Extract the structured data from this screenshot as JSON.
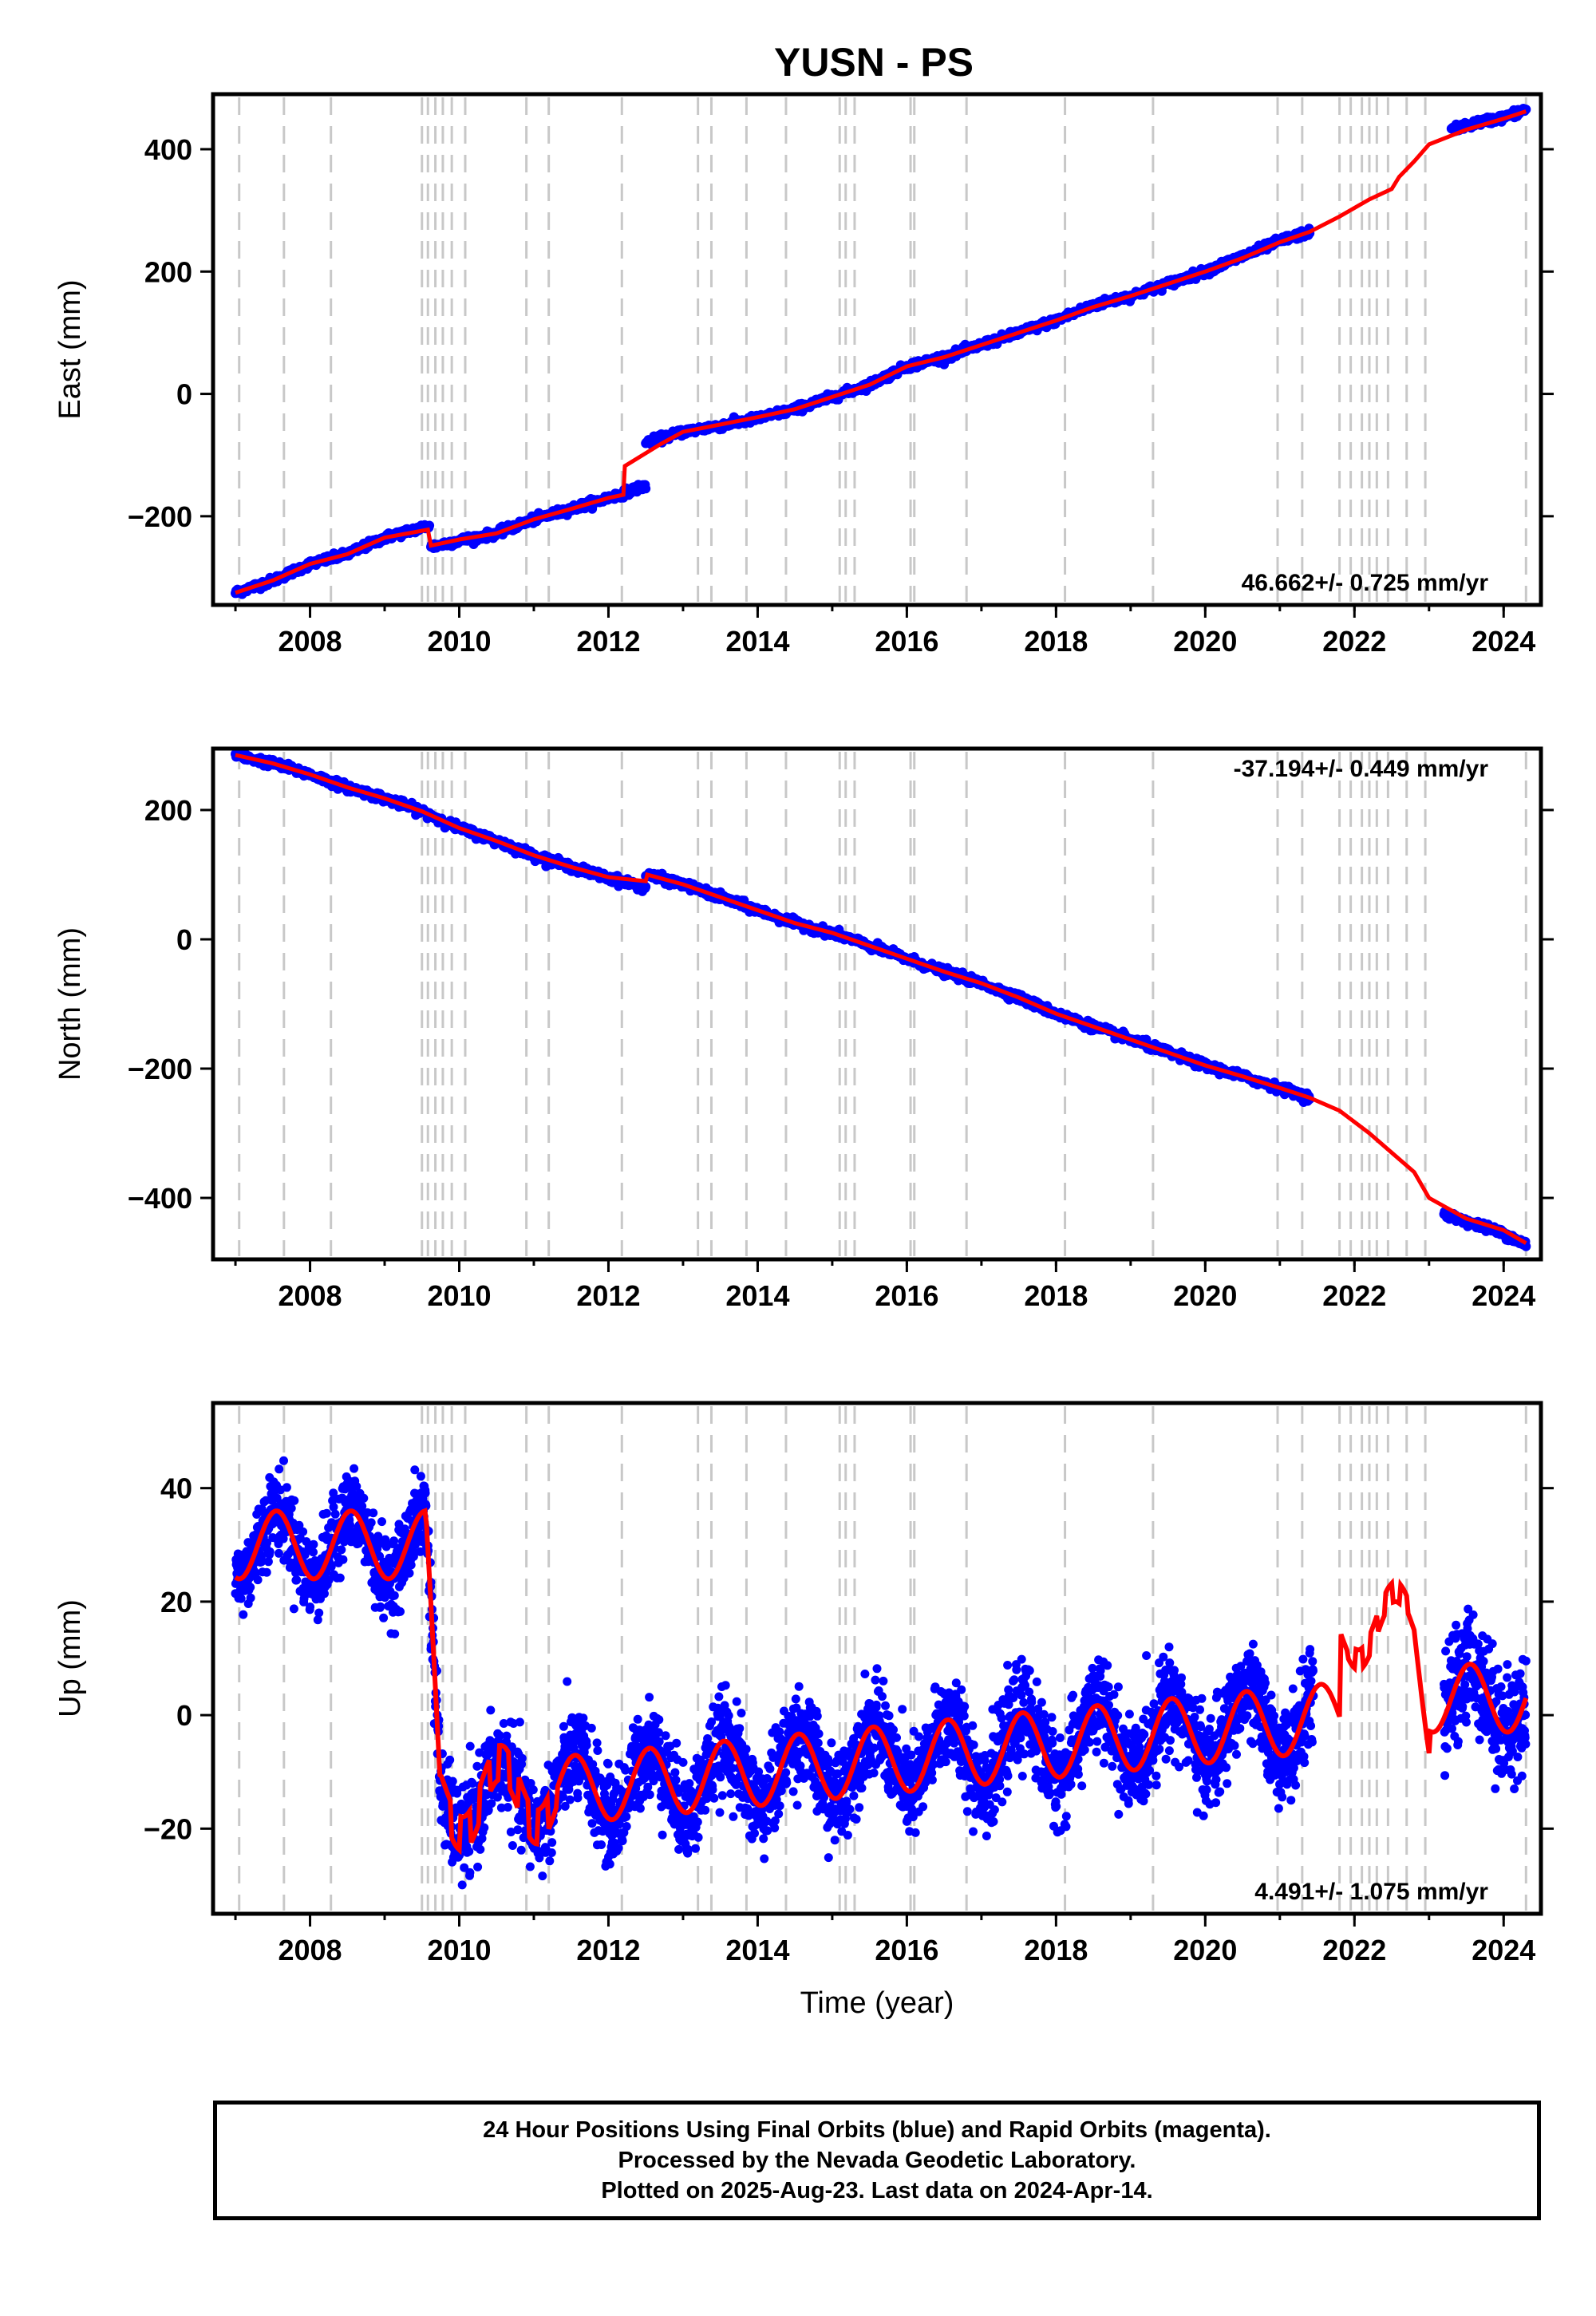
{
  "title": "YUSN - PS",
  "chart_data": [
    {
      "type": "scatter",
      "ylabel": "East (mm)",
      "xlim": [
        2006.7,
        2024.5
      ],
      "ylim": [
        -345,
        490
      ],
      "x_ticks": [
        2008,
        2010,
        2012,
        2014,
        2016,
        2018,
        2020,
        2022,
        2024
      ],
      "y_ticks": [
        -200,
        0,
        200,
        400
      ],
      "rate_label": "46.662+/- 0.725 mm/yr",
      "series": [
        {
          "color": "#0000ff",
          "segments": [
            {
              "x": [
                2007.0,
                2007.5,
                2008.0,
                2008.5,
                2009.0,
                2009.4,
                2009.6
              ],
              "y": [
                -325,
                -305,
                -278,
                -262,
                -235,
                -222,
                -215
              ]
            },
            {
              "x": [
                2009.62,
                2010.0,
                2010.5,
                2011.0,
                2011.5,
                2012.0,
                2012.5
              ],
              "y": [
                -250,
                -240,
                -228,
                -205,
                -188,
                -170,
                -150
              ]
            },
            {
              "x": [
                2012.5,
                2013.0,
                2013.5,
                2014.0,
                2014.5,
                2015.0,
                2015.5,
                2016.0,
                2016.5,
                2017.0,
                2017.5,
                2018.0,
                2018.5,
                2019.0,
                2019.5,
                2020.0,
                2020.5,
                2021.0,
                2021.4
              ],
              "y": [
                -80,
                -62,
                -52,
                -40,
                -25,
                -5,
                15,
                45,
                60,
                80,
                100,
                120,
                145,
                160,
                180,
                200,
                225,
                250,
                265
              ]
            },
            {
              "x": [
                2023.3,
                2023.6,
                2024.0,
                2024.3
              ],
              "y": [
                432,
                442,
                452,
                465
              ]
            }
          ]
        },
        {
          "color": "#ff0000",
          "x": [
            2007.0,
            2007.5,
            2008.0,
            2008.5,
            2009.0,
            2009.58,
            2009.62,
            2010.0,
            2010.5,
            2011.0,
            2011.5,
            2012.0,
            2012.2,
            2012.22,
            2012.7,
            2013.0,
            2013.5,
            2014.0,
            2014.5,
            2015.0,
            2015.5,
            2016.0,
            2016.5,
            2017.0,
            2017.5,
            2018.0,
            2018.5,
            2019.0,
            2019.5,
            2020.0,
            2020.5,
            2021.0,
            2021.4,
            2021.8,
            2022.2,
            2022.5,
            2022.6,
            2022.8,
            2023.0,
            2023.5,
            2024.0,
            2024.3
          ],
          "y": [
            -325,
            -305,
            -278,
            -262,
            -235,
            -222,
            -248,
            -238,
            -228,
            -205,
            -188,
            -170,
            -165,
            -118,
            -82,
            -62,
            -50,
            -38,
            -25,
            -5,
            15,
            45,
            60,
            80,
            100,
            120,
            142,
            160,
            180,
            200,
            222,
            248,
            265,
            290,
            318,
            335,
            355,
            380,
            408,
            432,
            450,
            462
          ]
        }
      ]
    },
    {
      "type": "scatter",
      "ylabel": "North (mm)",
      "xlim": [
        2006.7,
        2024.5
      ],
      "ylim": [
        -495,
        295
      ],
      "x_ticks": [
        2008,
        2010,
        2012,
        2014,
        2016,
        2018,
        2020,
        2022,
        2024
      ],
      "y_ticks": [
        -400,
        -200,
        0,
        200
      ],
      "rate_label": "-37.194+/- 0.449 mm/yr",
      "series": [
        {
          "color": "#0000ff",
          "segments": [
            {
              "x": [
                2007.0,
                2007.5,
                2008.0,
                2008.5,
                2009.0,
                2009.5,
                2010.0,
                2010.5,
                2011.0,
                2011.5,
                2012.0,
                2012.5
              ],
              "y": [
                285,
                272,
                255,
                235,
                218,
                198,
                172,
                152,
                130,
                112,
                95,
                80
              ]
            },
            {
              "x": [
                2012.5,
                2013.0,
                2013.5,
                2014.0,
                2014.5,
                2015.0,
                2015.5,
                2016.0,
                2016.5,
                2017.0,
                2017.5,
                2018.0,
                2018.5,
                2019.0,
                2019.5,
                2020.0,
                2020.5,
                2021.0,
                2021.4
              ],
              "y": [
                100,
                85,
                65,
                45,
                25,
                10,
                -10,
                -30,
                -50,
                -68,
                -90,
                -115,
                -135,
                -155,
                -175,
                -195,
                -212,
                -230,
                -245
              ]
            },
            {
              "x": [
                2023.2,
                2023.6,
                2024.0,
                2024.3
              ],
              "y": [
                -425,
                -440,
                -455,
                -472
              ]
            }
          ]
        },
        {
          "color": "#ff0000",
          "x": [
            2007.0,
            2007.5,
            2008.0,
            2008.5,
            2009.0,
            2009.5,
            2010.0,
            2010.5,
            2011.0,
            2011.5,
            2012.0,
            2012.5,
            2012.52,
            2013.0,
            2013.5,
            2014.0,
            2014.5,
            2015.0,
            2015.5,
            2016.0,
            2016.5,
            2017.0,
            2017.5,
            2018.0,
            2018.5,
            2019.0,
            2019.5,
            2020.0,
            2020.5,
            2021.0,
            2021.4,
            2021.8,
            2022.2,
            2022.5,
            2022.8,
            2023.0,
            2023.5,
            2024.0,
            2024.3
          ],
          "y": [
            285,
            272,
            255,
            235,
            218,
            198,
            172,
            152,
            130,
            112,
            96,
            90,
            100,
            85,
            65,
            45,
            25,
            10,
            -10,
            -30,
            -50,
            -68,
            -90,
            -115,
            -135,
            -155,
            -175,
            -195,
            -212,
            -230,
            -245,
            -265,
            -300,
            -330,
            -360,
            -400,
            -432,
            -450,
            -470
          ]
        }
      ]
    },
    {
      "type": "scatter",
      "xlabel": "Time (year)",
      "ylabel": "Up (mm)",
      "xlim": [
        2006.7,
        2024.5
      ],
      "ylim": [
        -35,
        55
      ],
      "x_ticks": [
        2008,
        2010,
        2012,
        2014,
        2016,
        2018,
        2020,
        2022,
        2024
      ],
      "y_ticks": [
        -20,
        0,
        20,
        40
      ],
      "rate_label": "4.491+/- 1.075 mm/yr",
      "series": [
        {
          "color": "#0000ff",
          "name": ""
        },
        {
          "color": "#ff0000",
          "name": ""
        }
      ]
    }
  ],
  "event_lines_x": [
    2007.05,
    2007.65,
    2008.28,
    2009.5,
    2009.58,
    2009.68,
    2009.78,
    2009.9,
    2010.08,
    2010.9,
    2011.2,
    2012.18,
    2013.2,
    2013.38,
    2013.85,
    2014.38,
    2015.1,
    2015.18,
    2015.3,
    2016.05,
    2016.1,
    2016.8,
    2018.12,
    2019.3,
    2020.97,
    2021.3,
    2021.8,
    2021.95,
    2022.1,
    2022.2,
    2022.3,
    2022.45,
    2022.7,
    2022.95,
    2024.3
  ],
  "footer": {
    "line1": "24 Hour Positions Using Final Orbits (blue) and Rapid Orbits (magenta).",
    "line2": "Processed by the Nevada Geodetic Laboratory.",
    "line3": "Plotted on 2025-Aug-23. Last data on 2024-Apr-14."
  }
}
